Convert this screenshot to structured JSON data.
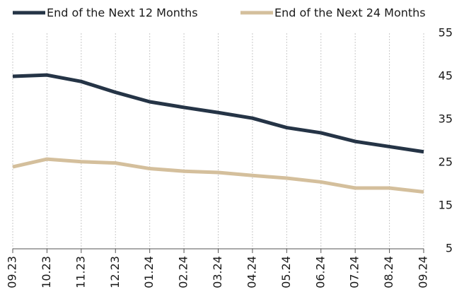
{
  "chart_data": {
    "type": "line",
    "categories": [
      "09.23",
      "10.23",
      "11.23",
      "12.23",
      "01.24",
      "02.24",
      "03.24",
      "04.24",
      "05.24",
      "06.24",
      "07.24",
      "08.24",
      "09.24"
    ],
    "series": [
      {
        "name": "End of the Next 12 Months",
        "color": "#253446",
        "values": [
          45.0,
          45.3,
          43.8,
          41.3,
          39.1,
          37.8,
          36.6,
          35.3,
          33.1,
          31.9,
          29.9,
          28.7,
          27.5
        ]
      },
      {
        "name": "End of the Next 24 Months",
        "color": "#d4bf9c",
        "values": [
          24.0,
          25.8,
          25.2,
          24.9,
          23.6,
          23.0,
          22.7,
          22.0,
          21.4,
          20.5,
          19.1,
          19.1,
          18.2
        ]
      }
    ],
    "ylim": [
      5,
      55
    ],
    "yticks": [
      5,
      15,
      25,
      35,
      45,
      55
    ],
    "grid": true,
    "legend": "top"
  }
}
